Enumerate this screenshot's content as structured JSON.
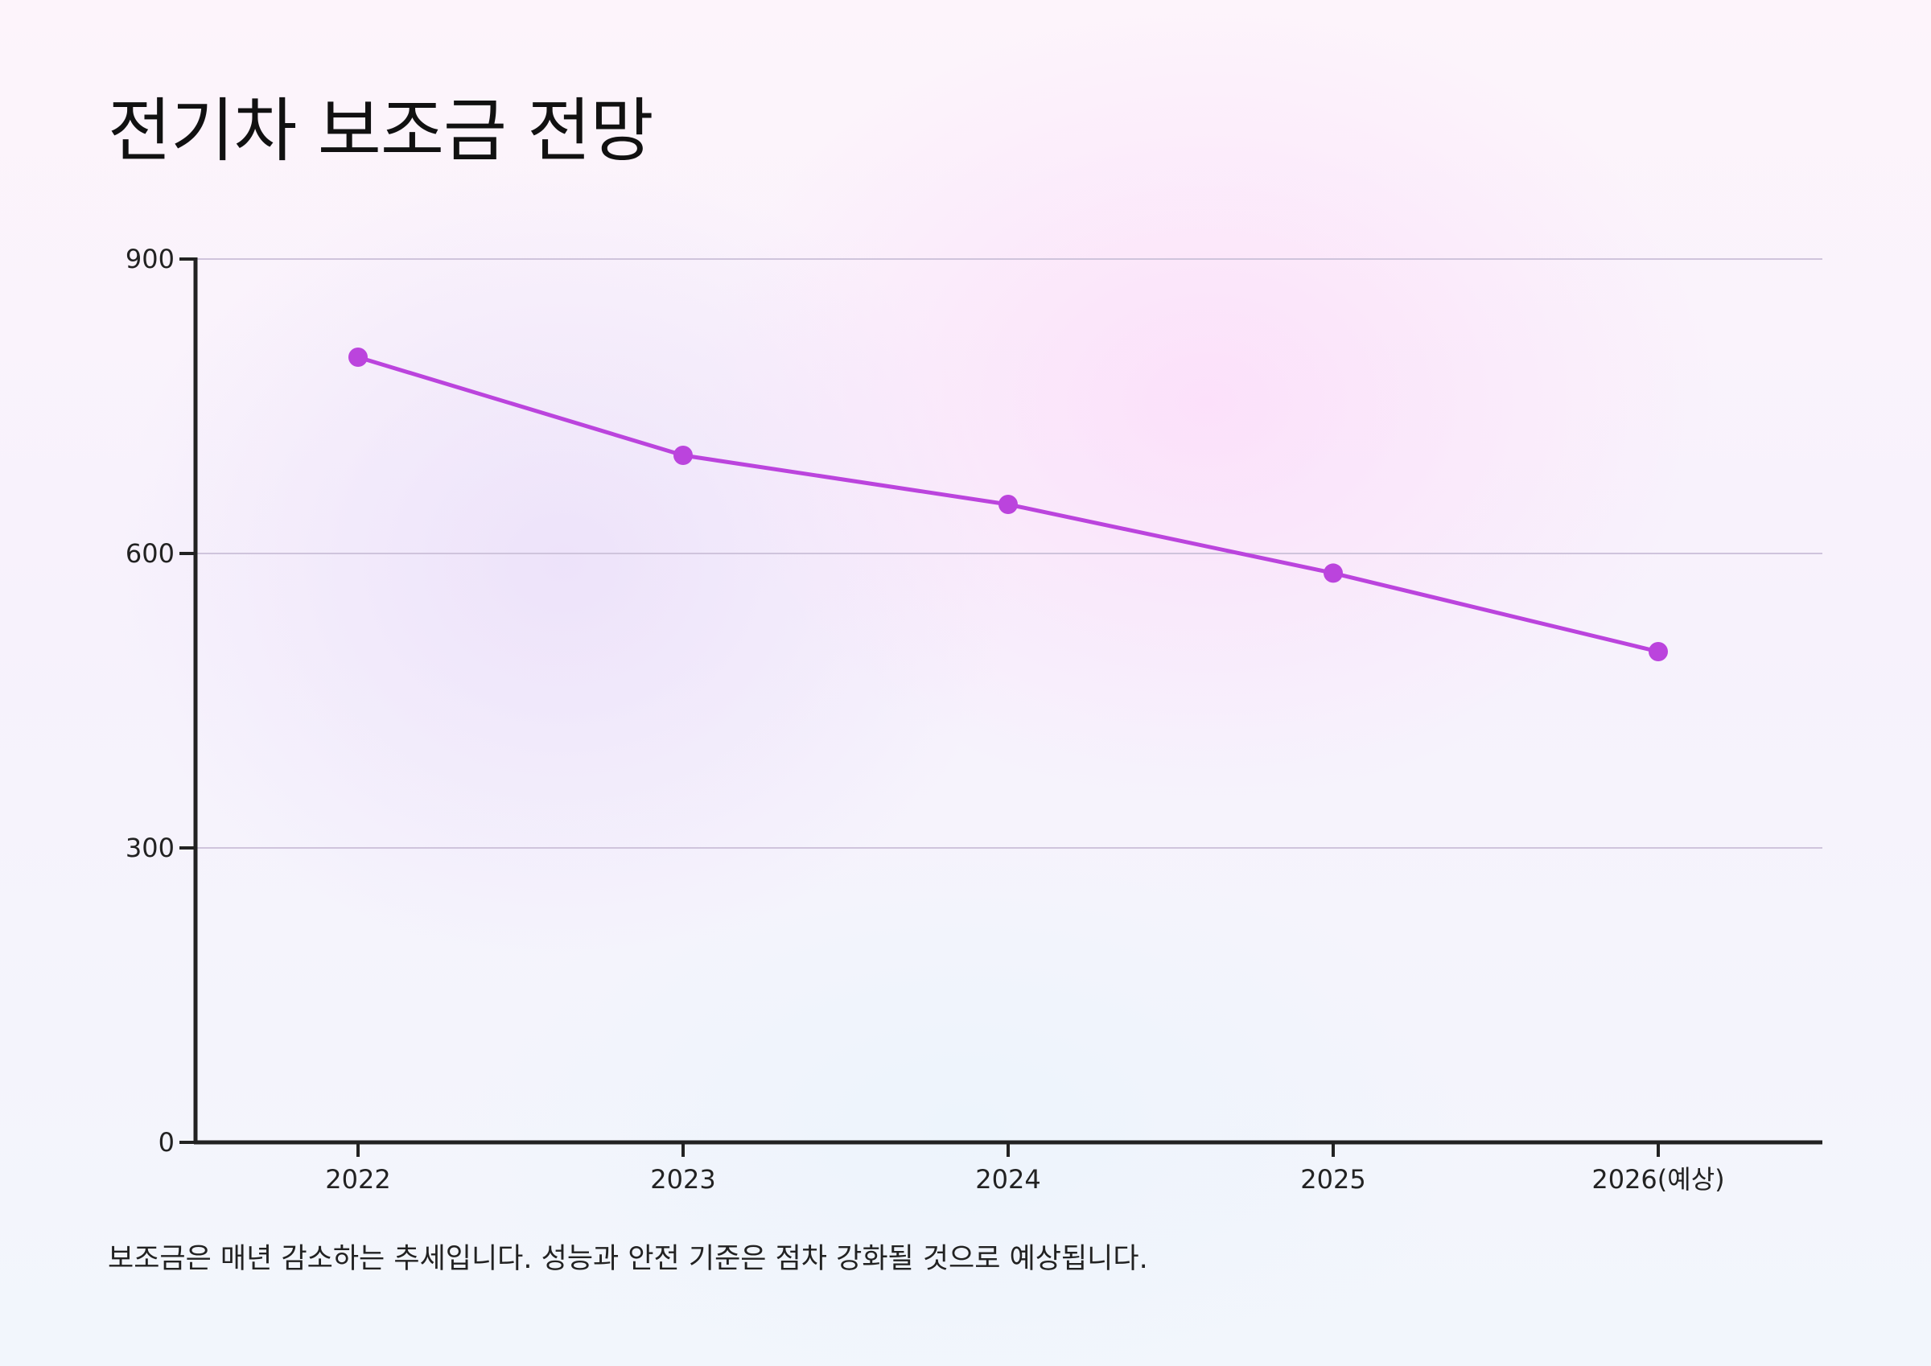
{
  "title": "전기차 보조금 전망",
  "caption": "보조금은 매년 감소하는 추세입니다. 성능과 안전 기준은 점차 강화될 것으로 예상됩니다.",
  "colors": {
    "line": "#bb44dd",
    "axis": "#222222",
    "grid": "#cfc4dc"
  },
  "chart_data": {
    "type": "line",
    "title": "전기차 보조금 전망",
    "xlabel": "",
    "ylabel": "",
    "categories": [
      "2022",
      "2023",
      "2024",
      "2025",
      "2026(예상)"
    ],
    "series": [
      {
        "values": [
          800,
          700,
          650,
          580,
          500
        ]
      }
    ],
    "ylim": [
      0,
      900
    ],
    "yticks": [
      "0",
      "300",
      "600",
      "900"
    ],
    "grid": true,
    "legend": "none"
  }
}
